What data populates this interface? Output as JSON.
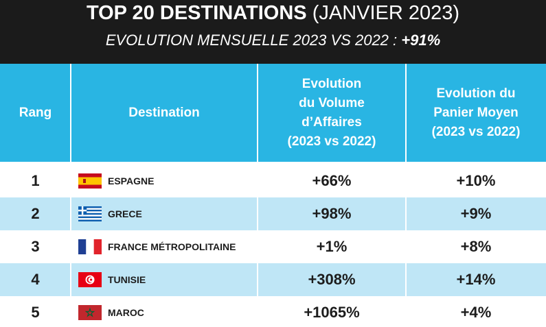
{
  "header": {
    "title_bold": "TOP 20 DESTINATIONS",
    "title_light": "(JANVIER 2023)",
    "subtitle_text": "EVOLUTION MENSUELLE 2023 VS 2022 :",
    "subtitle_value": "+91%"
  },
  "table": {
    "columns": [
      {
        "label_lines": [
          "Rang"
        ]
      },
      {
        "label_lines": [
          "Destination"
        ]
      },
      {
        "label_lines": [
          "Evolution",
          "du Volume",
          "d’Affaires",
          "(2023 vs 2022)"
        ]
      },
      {
        "label_lines": [
          "Evolution du",
          "Panier Moyen",
          "(2023 vs 2022)"
        ]
      }
    ],
    "rows": [
      {
        "rank": "1",
        "destination": "ESPAGNE",
        "flag_icon": "spain-flag-icon",
        "volume": "+66%",
        "panier": "+10%"
      },
      {
        "rank": "2",
        "destination": "GRECE",
        "flag_icon": "greece-flag-icon",
        "volume": "+98%",
        "panier": "+9%"
      },
      {
        "rank": "3",
        "destination": "FRANCE MÉTROPOLITAINE",
        "flag_icon": "france-flag-icon",
        "volume": "+1%",
        "panier": "+8%"
      },
      {
        "rank": "4",
        "destination": "TUNISIE",
        "flag_icon": "tunisia-flag-icon",
        "volume": "+308%",
        "panier": "+14%"
      },
      {
        "rank": "5",
        "destination": "MAROC",
        "flag_icon": "morocco-flag-icon",
        "volume": "+1065%",
        "panier": "+4%"
      }
    ]
  },
  "colors": {
    "header_bg": "#1b1b1b",
    "table_header_bg": "#29b5e3",
    "alt_row_bg": "#bfe6f6"
  }
}
